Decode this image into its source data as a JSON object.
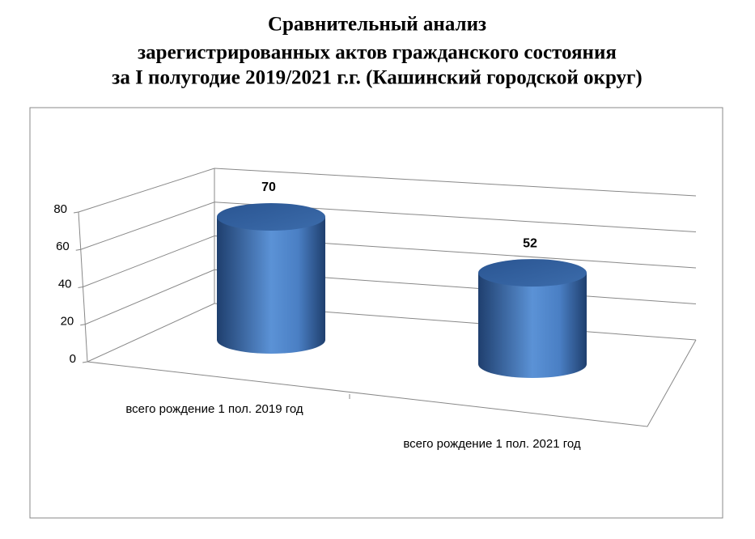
{
  "chart_data": {
    "type": "bar",
    "title": [
      "Сравнительный анализ",
      "зарегистрированных актов гражданского состояния",
      "за I полугодие 2019/2021 г.г. (Кашинский городской округ)"
    ],
    "categories": [
      "всего рождение 1 пол. 2019 год",
      "всего рождение 1 пол. 2021 год"
    ],
    "values": [
      70,
      52
    ],
    "color": "#4a7ebb",
    "ylim": [
      0,
      80
    ],
    "yticks": [
      0,
      20,
      40,
      60,
      80
    ],
    "grid": true
  }
}
